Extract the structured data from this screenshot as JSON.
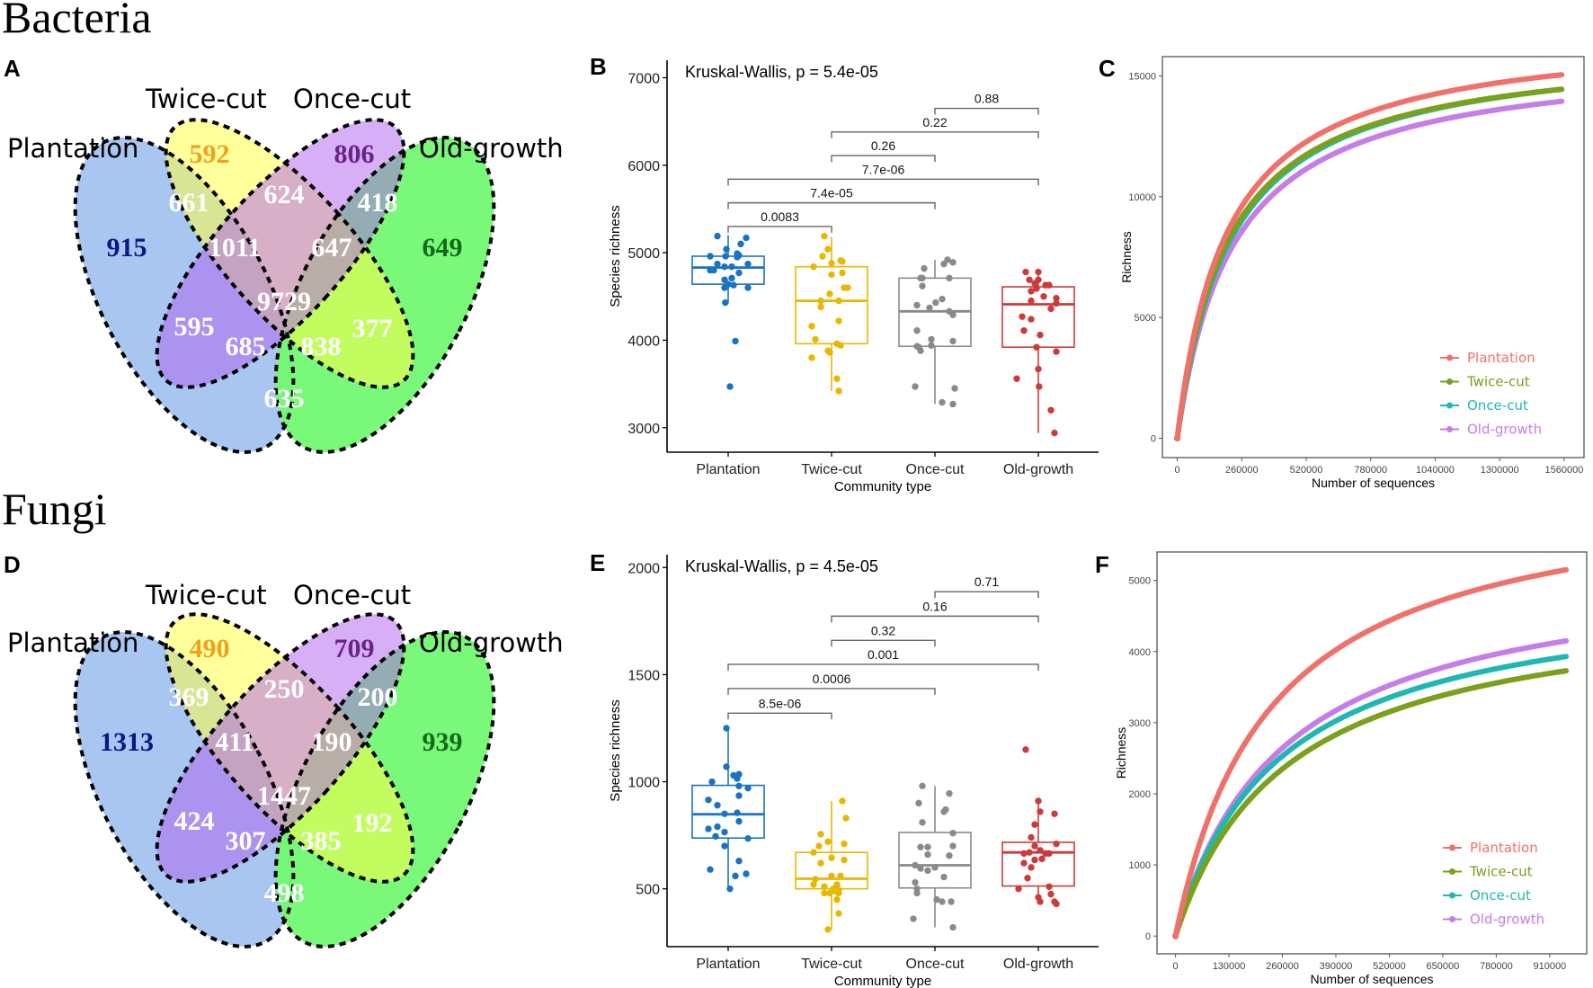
{
  "sections": {
    "bacteria": "Bacteria",
    "fungi": "Fungi"
  },
  "panel_letters": {
    "A": "A",
    "B": "B",
    "C": "C",
    "D": "D",
    "E": "E",
    "F": "F"
  },
  "colors": {
    "plantation": "#1a73c0",
    "twice_cut": "#e8b800",
    "once_cut": "#8a8a8a",
    "old_growth": "#cc3b3b",
    "bracket": "#666666",
    "rc_plantation": "#f0706a",
    "rc_twice_cut": "#7aa01c",
    "rc_once_cut": "#1fb8b0",
    "rc_old_growth": "#c57ee8",
    "venn_plantation_label": "#0b1787",
    "venn_twice_label": "#f0a020",
    "venn_once_label": "#6a2389",
    "venn_old_label": "#136b1a"
  },
  "venn_labels": [
    "Plantation",
    "Twice-cut",
    "Once-cut",
    "Old-growth"
  ],
  "venn": [
    {
      "panel": "A",
      "regions": {
        "plantation_only": "915",
        "twice_only": "592",
        "once_only": "806",
        "old_only": "649",
        "plant_twice": "661",
        "twice_once": "624",
        "once_old": "418",
        "plant_twice_once": "1011",
        "twice_once_old": "647",
        "all": "9729",
        "plant_once": "595",
        "plant_once_old": "685",
        "plant_twice_old": "838",
        "twice_old": "377",
        "plant_old": "635"
      }
    },
    {
      "panel": "D",
      "regions": {
        "plantation_only": "1313",
        "twice_only": "490",
        "once_only": "709",
        "old_only": "939",
        "plant_twice": "369",
        "twice_once": "250",
        "once_old": "200",
        "plant_twice_once": "411",
        "twice_once_old": "190",
        "all": "1447",
        "plant_once": "424",
        "plant_once_old": "307",
        "plant_twice_old": "385",
        "twice_old": "192",
        "plant_old": "498"
      }
    }
  ],
  "chart_data": [
    {
      "panel": "B",
      "type": "box",
      "title": "Kruskal-Wallis, p = 5.4e-05",
      "xlabel": "Community type",
      "ylabel": "Species richness",
      "categories": [
        "Plantation",
        "Twice-cut",
        "Once-cut",
        "Old-growth"
      ],
      "ylim": [
        2720,
        7200
      ],
      "yticks": [
        3000,
        4000,
        5000,
        6000,
        7000
      ],
      "boxes": [
        {
          "q1": 4640,
          "median": 4830,
          "q3": 4960,
          "lo": 4430,
          "hi": 5200
        },
        {
          "q1": 3960,
          "median": 4450,
          "q3": 4840,
          "lo": 3420,
          "hi": 5180
        },
        {
          "q1": 3930,
          "median": 4330,
          "q3": 4710,
          "lo": 3270,
          "hi": 4920
        },
        {
          "q1": 3920,
          "median": 4410,
          "q3": 4610,
          "lo": 2940,
          "hi": 4790
        }
      ],
      "points": [
        [
          [
            -0.3,
            5190
          ],
          [
            0.5,
            5170
          ],
          [
            0.35,
            5100
          ],
          [
            -0.05,
            5040
          ],
          [
            0.25,
            4990
          ],
          [
            0.3,
            4970
          ],
          [
            -0.5,
            4960
          ],
          [
            -0.07,
            4960
          ],
          [
            0.25,
            4950
          ],
          [
            -0.3,
            4870
          ],
          [
            0.55,
            4870
          ],
          [
            -0.1,
            4840
          ],
          [
            0.1,
            4840
          ],
          [
            -0.5,
            4800
          ],
          [
            -0.4,
            4800
          ],
          [
            0.3,
            4770
          ],
          [
            -0.1,
            4690
          ],
          [
            0.1,
            4710
          ],
          [
            0.0,
            4640
          ],
          [
            0.15,
            4630
          ],
          [
            -0.1,
            4600
          ],
          [
            0.55,
            4600
          ],
          [
            -0.08,
            4430
          ],
          [
            0.2,
            3990
          ],
          [
            0.05,
            3470
          ]
        ],
        [
          [
            -0.2,
            5190
          ],
          [
            -0.1,
            5040
          ],
          [
            -0.25,
            4960
          ],
          [
            0.25,
            4910
          ],
          [
            0.3,
            4900
          ],
          [
            0.0,
            4880
          ],
          [
            -0.5,
            4840
          ],
          [
            0.0,
            4750
          ],
          [
            0.3,
            4770
          ],
          [
            0.35,
            4600
          ],
          [
            0.45,
            4600
          ],
          [
            -0.05,
            4530
          ],
          [
            -0.3,
            4450
          ],
          [
            0.2,
            4450
          ],
          [
            -0.3,
            4380
          ],
          [
            0.2,
            4220
          ],
          [
            -0.55,
            4160
          ],
          [
            -0.45,
            4010
          ],
          [
            0.15,
            3960
          ],
          [
            0.25,
            3940
          ],
          [
            -0.1,
            3880
          ],
          [
            -0.05,
            3860
          ],
          [
            -0.55,
            3800
          ],
          [
            0.15,
            3560
          ],
          [
            0.2,
            3420
          ]
        ],
        [
          [
            0.35,
            4920
          ],
          [
            0.5,
            4890
          ],
          [
            0.25,
            4870
          ],
          [
            -0.3,
            4820
          ],
          [
            -0.4,
            4710
          ],
          [
            -0.35,
            4710
          ],
          [
            0.4,
            4710
          ],
          [
            -0.35,
            4620
          ],
          [
            -0.5,
            4400
          ],
          [
            0.2,
            4470
          ],
          [
            0.02,
            4430
          ],
          [
            -0.15,
            4370
          ],
          [
            0.4,
            4330
          ],
          [
            0.5,
            4290
          ],
          [
            -0.5,
            4110
          ],
          [
            -0.1,
            4010
          ],
          [
            0.5,
            3990
          ],
          [
            -0.5,
            3930
          ],
          [
            -0.45,
            3920
          ],
          [
            -0.4,
            3880
          ],
          [
            -0.1,
            3940
          ],
          [
            -0.55,
            3470
          ],
          [
            0.55,
            3450
          ],
          [
            0.2,
            3290
          ],
          [
            0.5,
            3270
          ]
        ],
        [
          [
            -0.35,
            4780
          ],
          [
            0.0,
            4780
          ],
          [
            -0.25,
            4690
          ],
          [
            0.0,
            4690
          ],
          [
            -0.1,
            4650
          ],
          [
            0.2,
            4630
          ],
          [
            0.3,
            4630
          ],
          [
            -0.05,
            4590
          ],
          [
            -0.2,
            4560
          ],
          [
            0.15,
            4500
          ],
          [
            0.5,
            4480
          ],
          [
            -0.2,
            4450
          ],
          [
            0.5,
            4420
          ],
          [
            0.35,
            4360
          ],
          [
            -0.45,
            4270
          ],
          [
            -0.2,
            4240
          ],
          [
            -0.4,
            4110
          ],
          [
            0.05,
            4060
          ],
          [
            -0.05,
            3920
          ],
          [
            0.5,
            3870
          ],
          [
            0.0,
            3670
          ],
          [
            -0.6,
            3560
          ],
          [
            0.02,
            3470
          ],
          [
            0.35,
            3200
          ],
          [
            0.45,
            2940
          ]
        ]
      ],
      "comparisons": [
        {
          "from": 0,
          "to": 1,
          "label": "0.0083",
          "y": 5300
        },
        {
          "from": 0,
          "to": 2,
          "label": "7.4e-05",
          "y": 5570
        },
        {
          "from": 0,
          "to": 3,
          "label": "7.7e-06",
          "y": 5840
        },
        {
          "from": 1,
          "to": 2,
          "label": "0.26",
          "y": 6110
        },
        {
          "from": 1,
          "to": 3,
          "label": "0.22",
          "y": 6380
        },
        {
          "from": 2,
          "to": 3,
          "label": "0.88",
          "y": 6650
        }
      ]
    },
    {
      "panel": "C",
      "type": "line",
      "title": "",
      "xlabel": "Number of sequences",
      "ylabel": "Richness",
      "xlim": [
        -60000,
        1640000
      ],
      "ylim": [
        -800,
        15800
      ],
      "xticks": [
        0,
        260000,
        520000,
        780000,
        1040000,
        1300000,
        1560000
      ],
      "xtick_labels": [
        "0",
        "260000",
        "520000",
        "780000",
        "1040000",
        "1300000",
        "1560000"
      ],
      "yticks": [
        0,
        5000,
        10000,
        15000
      ],
      "x_max": 1550000,
      "series": [
        {
          "name": "Plantation",
          "final": 15050,
          "half_sat": 200000
        },
        {
          "name": "Twice-cut",
          "final": 14450,
          "half_sat": 205000
        },
        {
          "name": "Once-cut",
          "final": 14450,
          "half_sat": 215000
        },
        {
          "name": "Old-growth",
          "final": 13950,
          "half_sat": 225000
        }
      ],
      "legend": "bottom-right"
    },
    {
      "panel": "E",
      "type": "box",
      "title": "Kruskal-Wallis, p = 4.5e-05",
      "xlabel": "Community type",
      "ylabel": "Species richness",
      "categories": [
        "Plantation",
        "Twice-cut",
        "Once-cut",
        "Old-growth"
      ],
      "ylim": [
        230,
        2060
      ],
      "yticks": [
        500,
        1000,
        1500,
        2000
      ],
      "boxes": [
        {
          "q1": 737,
          "median": 848,
          "q3": 983,
          "lo": 500,
          "hi": 1260
        },
        {
          "q1": 500,
          "median": 547,
          "q3": 670,
          "lo": 310,
          "hi": 910
        },
        {
          "q1": 504,
          "median": 610,
          "q3": 763,
          "lo": 320,
          "hi": 980
        },
        {
          "q1": 513,
          "median": 670,
          "q3": 717,
          "lo": 440,
          "hi": 910
        }
      ],
      "points": [
        [
          [
            -0.05,
            1250
          ],
          [
            -0.05,
            1070
          ],
          [
            0.15,
            1030
          ],
          [
            0.3,
            1035
          ],
          [
            0.25,
            1015
          ],
          [
            -0.45,
            1000
          ],
          [
            0.3,
            980
          ],
          [
            0.55,
            970
          ],
          [
            0.3,
            935
          ],
          [
            -0.55,
            915
          ],
          [
            -0.3,
            890
          ],
          [
            0.25,
            855
          ],
          [
            -0.1,
            850
          ],
          [
            0.3,
            815
          ],
          [
            -0.3,
            790
          ],
          [
            -0.55,
            780
          ],
          [
            -0.35,
            745
          ],
          [
            -0.1,
            765
          ],
          [
            0.55,
            735
          ],
          [
            -0.1,
            700
          ],
          [
            0.3,
            630
          ],
          [
            -0.5,
            590
          ],
          [
            0.2,
            560
          ],
          [
            0.5,
            570
          ],
          [
            0.05,
            500
          ]
        ],
        [
          [
            0.3,
            910
          ],
          [
            0.4,
            830
          ],
          [
            -0.3,
            755
          ],
          [
            -0.1,
            720
          ],
          [
            0.35,
            710
          ],
          [
            -0.35,
            700
          ],
          [
            -0.5,
            670
          ],
          [
            0.0,
            645
          ],
          [
            -0.3,
            620
          ],
          [
            0.35,
            635
          ],
          [
            -0.45,
            545
          ],
          [
            0.0,
            560
          ],
          [
            0.25,
            560
          ],
          [
            -0.5,
            520
          ],
          [
            -0.2,
            510
          ],
          [
            0.15,
            520
          ],
          [
            0.05,
            500
          ],
          [
            0.2,
            495
          ],
          [
            0.1,
            490
          ],
          [
            0.2,
            480
          ],
          [
            -0.05,
            480
          ],
          [
            -0.2,
            480
          ],
          [
            0.15,
            450
          ],
          [
            0.2,
            385
          ],
          [
            -0.1,
            310
          ]
        ],
        [
          [
            -0.35,
            980
          ],
          [
            0.4,
            945
          ],
          [
            -0.45,
            900
          ],
          [
            0.3,
            870
          ],
          [
            0.25,
            860
          ],
          [
            -0.35,
            810
          ],
          [
            0.5,
            760
          ],
          [
            -0.4,
            695
          ],
          [
            -0.2,
            695
          ],
          [
            0.5,
            700
          ],
          [
            -0.2,
            660
          ],
          [
            0.4,
            655
          ],
          [
            -0.55,
            610
          ],
          [
            -0.4,
            595
          ],
          [
            0.0,
            600
          ],
          [
            -0.2,
            585
          ],
          [
            0.25,
            555
          ],
          [
            -0.55,
            530
          ],
          [
            -0.5,
            500
          ],
          [
            -0.5,
            480
          ],
          [
            0.2,
            440
          ],
          [
            0.45,
            440
          ],
          [
            -0.6,
            360
          ],
          [
            0.5,
            320
          ],
          [
            0.05,
            450
          ]
        ],
        [
          [
            -0.35,
            1150
          ],
          [
            0.0,
            910
          ],
          [
            0.05,
            860
          ],
          [
            0.45,
            850
          ],
          [
            -0.1,
            800
          ],
          [
            -0.2,
            740
          ],
          [
            0.5,
            710
          ],
          [
            -0.1,
            700
          ],
          [
            -0.4,
            665
          ],
          [
            -0.25,
            670
          ],
          [
            0.2,
            665
          ],
          [
            0.3,
            665
          ],
          [
            0.05,
            680
          ],
          [
            -0.1,
            635
          ],
          [
            0.1,
            640
          ],
          [
            -0.4,
            620
          ],
          [
            -0.2,
            600
          ],
          [
            -0.3,
            550
          ],
          [
            0.3,
            510
          ],
          [
            -0.55,
            500
          ],
          [
            0.35,
            475
          ],
          [
            0.0,
            460
          ],
          [
            0.05,
            440
          ],
          [
            0.45,
            440
          ],
          [
            0.5,
            430
          ]
        ]
      ],
      "comparisons": [
        {
          "from": 0,
          "to": 1,
          "label": "8.5e-06",
          "y": 1320
        },
        {
          "from": 0,
          "to": 2,
          "label": "0.0006",
          "y": 1435
        },
        {
          "from": 0,
          "to": 3,
          "label": "0.001",
          "y": 1548
        },
        {
          "from": 1,
          "to": 2,
          "label": "0.32",
          "y": 1660
        },
        {
          "from": 1,
          "to": 3,
          "label": "0.16",
          "y": 1773
        },
        {
          "from": 2,
          "to": 3,
          "label": "0.71",
          "y": 1887
        }
      ]
    },
    {
      "panel": "F",
      "type": "line",
      "title": "",
      "xlabel": "Number of sequences",
      "ylabel": "Richness",
      "xlim": [
        -45000,
        1000000
      ],
      "ylim": [
        -250,
        5400
      ],
      "xticks": [
        0,
        130000,
        260000,
        390000,
        520000,
        650000,
        780000,
        910000
      ],
      "xtick_labels": [
        "0",
        "130000",
        "260000",
        "390000",
        "520000",
        "650000",
        "780000",
        "910000"
      ],
      "yticks": [
        0,
        1000,
        2000,
        3000,
        4000,
        5000
      ],
      "x_max": 950000,
      "series": [
        {
          "name": "Plantation",
          "final": 5150,
          "half_sat": 230000
        },
        {
          "name": "Twice-cut",
          "final": 3730,
          "half_sat": 270000
        },
        {
          "name": "Once-cut",
          "final": 3930,
          "half_sat": 250000
        },
        {
          "name": "Old-growth",
          "final": 4150,
          "half_sat": 260000
        }
      ],
      "legend": "bottom-right"
    }
  ]
}
